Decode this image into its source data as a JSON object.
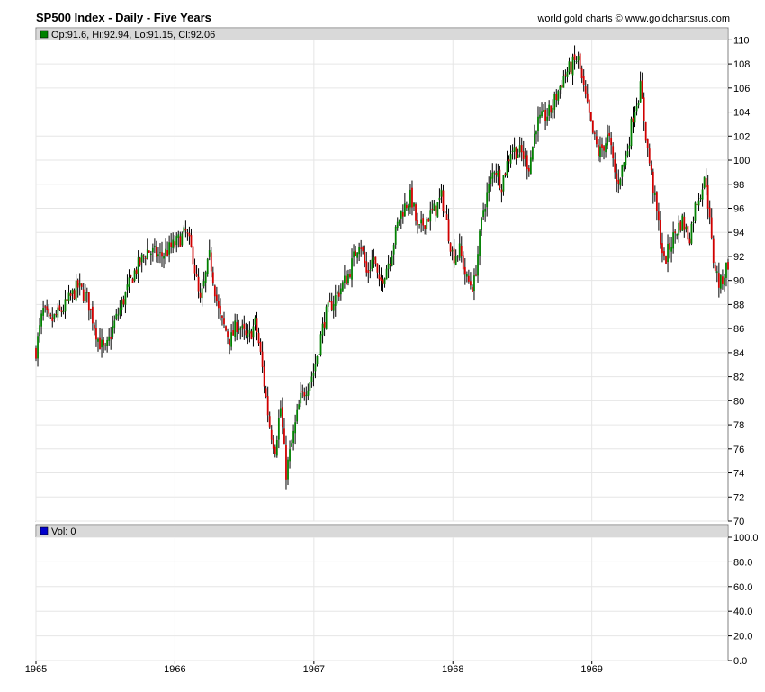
{
  "header": {
    "title": "SP500 Index - Daily - Five Years",
    "credit": "world gold charts © www.goldchartsrus.com"
  },
  "chart_data": [
    {
      "type": "candlestick",
      "legend": "Op:91.6, Hi:92.94, Lo:91.15, Cl:92.06",
      "ylim": [
        70,
        111
      ],
      "yticks": [
        "110",
        "108",
        "106",
        "104",
        "102",
        "100",
        "98",
        "96",
        "94",
        "92",
        "90",
        "88",
        "86",
        "84",
        "82",
        "80",
        "78",
        "76",
        "74",
        "72",
        "70"
      ],
      "xlim": [
        1965.0,
        1969.98
      ],
      "xticks": [
        "1965",
        "1966",
        "1967",
        "1968",
        "1969"
      ],
      "grid": true,
      "colors": {
        "up": "#008000",
        "down": "#d00000",
        "wick": "#000000"
      },
      "x": [
        1965.0,
        1965.05,
        1965.1,
        1965.2,
        1965.3,
        1965.37,
        1965.45,
        1965.5,
        1965.55,
        1965.6,
        1965.7,
        1965.8,
        1965.9,
        1966.0,
        1966.08,
        1966.13,
        1966.18,
        1966.25,
        1966.32,
        1966.4,
        1966.45,
        1966.52,
        1966.58,
        1966.62,
        1966.68,
        1966.72,
        1966.76,
        1966.8,
        1966.9,
        1967.0,
        1967.08,
        1967.15,
        1967.25,
        1967.33,
        1967.38,
        1967.43,
        1967.47,
        1967.55,
        1967.62,
        1967.7,
        1967.75,
        1967.8,
        1967.88,
        1967.92,
        1968.0,
        1968.05,
        1968.1,
        1968.15,
        1968.22,
        1968.3,
        1968.35,
        1968.42,
        1968.5,
        1968.55,
        1968.6,
        1968.7,
        1968.8,
        1968.9,
        1968.93,
        1969.0,
        1969.05,
        1969.12,
        1969.18,
        1969.25,
        1969.3,
        1969.35,
        1969.4,
        1969.45,
        1969.52,
        1969.55,
        1969.6,
        1969.65,
        1969.7,
        1969.75,
        1969.82,
        1969.87,
        1969.92,
        1969.98
      ],
      "close": [
        84.2,
        87.5,
        86.5,
        87.7,
        89.5,
        88.5,
        85.0,
        84.0,
        86.0,
        87.5,
        90.5,
        92.5,
        92.0,
        93.0,
        94.0,
        92.0,
        88.0,
        92.0,
        87.0,
        85.0,
        86.5,
        85.0,
        86.5,
        83.5,
        78.0,
        76.0,
        79.5,
        74.0,
        80.0,
        82.5,
        87.0,
        88.5,
        90.5,
        93.5,
        90.5,
        92.0,
        89.5,
        92.0,
        95.5,
        97.0,
        94.0,
        95.0,
        96.0,
        97.0,
        92.0,
        92.5,
        90.0,
        89.5,
        96.0,
        99.5,
        98.0,
        101.0,
        100.5,
        99.5,
        103.0,
        104.0,
        107.0,
        108.5,
        106.5,
        102.5,
        100.5,
        102.0,
        98.0,
        100.5,
        104.0,
        106.0,
        101.0,
        97.0,
        91.5,
        92.5,
        94.0,
        95.0,
        93.5,
        96.5,
        98.5,
        92.0,
        89.5,
        91.5
      ]
    },
    {
      "type": "bar",
      "name": "volume",
      "legend": "Vol: 0",
      "ylim": [
        0,
        100
      ],
      "yticks": [
        "100.0",
        "80.0",
        "60.0",
        "40.0",
        "20.0",
        "0.0"
      ],
      "xticks": [
        "1965",
        "1966",
        "1967",
        "1968",
        "1969"
      ],
      "values": [],
      "grid": true,
      "colors": {
        "legend_marker": "#0000cc"
      }
    }
  ]
}
